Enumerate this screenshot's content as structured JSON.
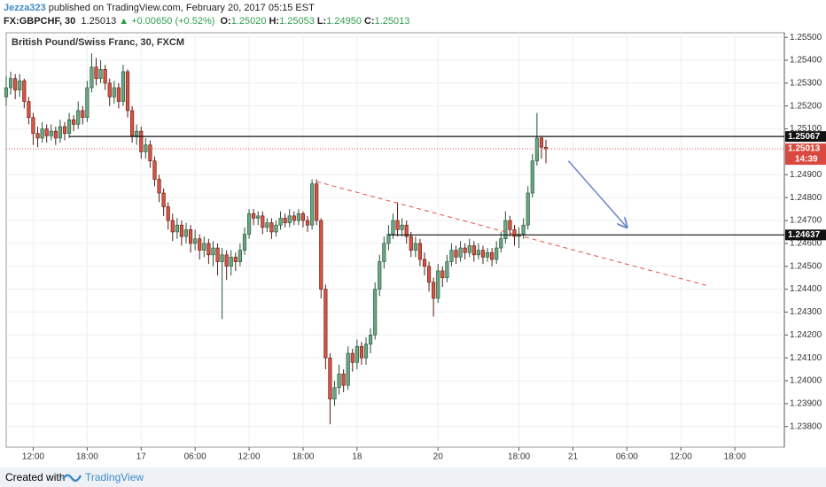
{
  "header": {
    "author": "Jezza323",
    "published": "published on TradingView.com, February 20, 2017 05:15 EST",
    "symbol": "FX:GBPCHF, 30",
    "last": "1.25013",
    "arrow": "▲",
    "change": "+0.00650 (+0.52%)",
    "ohlc": [
      {
        "label": "O:",
        "value": "1.25020"
      },
      {
        "label": "H:",
        "value": "1.25053"
      },
      {
        "label": "L:",
        "value": "1.24950"
      },
      {
        "label": "C:",
        "value": "1.25013"
      }
    ]
  },
  "chart_data": {
    "type": "candlestick",
    "title": "British Pound/Swiss Franc, 30, FXCM",
    "up_color": "#6ba583",
    "down_color": "#d75442",
    "grid": true,
    "xlim": [
      0,
      173
    ],
    "ylim": [
      1.2371,
      1.2552
    ],
    "xticks": [
      {
        "value": 6,
        "label": "12:00"
      },
      {
        "value": 18,
        "label": "18:00"
      },
      {
        "value": 30,
        "label": "17"
      },
      {
        "value": 42,
        "label": "06:00"
      },
      {
        "value": 54,
        "label": "12:00"
      },
      {
        "value": 66,
        "label": "18:00"
      },
      {
        "value": 78,
        "label": "18"
      },
      {
        "value": 96,
        "label": "20"
      },
      {
        "value": 114,
        "label": "18:00"
      },
      {
        "value": 126,
        "label": "21"
      },
      {
        "value": 138,
        "label": "06:00"
      },
      {
        "value": 150,
        "label": "12:00"
      },
      {
        "value": 162,
        "label": "18:00"
      }
    ],
    "yticks": [
      {
        "value": 1.255,
        "label": "1.25500"
      },
      {
        "value": 1.254,
        "label": "1.25400"
      },
      {
        "value": 1.253,
        "label": "1.25300"
      },
      {
        "value": 1.252,
        "label": "1.25200"
      },
      {
        "value": 1.251,
        "label": "1.25100"
      },
      {
        "value": 1.249,
        "label": "1.24900"
      },
      {
        "value": 1.248,
        "label": "1.24800"
      },
      {
        "value": 1.247,
        "label": "1.24700"
      },
      {
        "value": 1.246,
        "label": "1.24600"
      },
      {
        "value": 1.245,
        "label": "1.24500"
      },
      {
        "value": 1.244,
        "label": "1.24400"
      },
      {
        "value": 1.243,
        "label": "1.24300"
      },
      {
        "value": 1.242,
        "label": "1.24200"
      },
      {
        "value": 1.241,
        "label": "1.24100"
      },
      {
        "value": 1.24,
        "label": "1.24000"
      },
      {
        "value": 1.239,
        "label": "1.23900"
      },
      {
        "value": 1.238,
        "label": "1.23800"
      }
    ],
    "open": [
      1.2524,
      1.2528,
      1.2532,
      1.2527,
      1.2531,
      1.2522,
      1.2515,
      1.2508,
      1.2506,
      1.251,
      1.2507,
      1.2509,
      1.2506,
      1.2511,
      1.2508,
      1.2514,
      1.2512,
      1.2518,
      1.2515,
      1.2528,
      1.2537,
      1.2532,
      1.2536,
      1.253,
      1.2524,
      1.2528,
      1.2522,
      1.2535,
      1.2518,
      1.2507,
      1.2509,
      1.25,
      1.2503,
      1.2496,
      1.2488,
      1.2482,
      1.2476,
      1.247,
      1.2465,
      1.2468,
      1.2463,
      1.2466,
      1.246,
      1.2462,
      1.2457,
      1.246,
      1.2455,
      1.2458,
      1.2452,
      1.2455,
      1.245,
      1.2454,
      1.2452,
      1.2457,
      1.2464,
      1.2473,
      1.2471,
      1.2472,
      1.2467,
      1.2469,
      1.2465,
      1.2468,
      1.2471,
      1.2469,
      1.2472,
      1.247,
      1.2473,
      1.247,
      1.2468,
      1.2486,
      1.247,
      1.244,
      1.241,
      1.2392,
      1.2397,
      1.2403,
      1.2398,
      1.2412,
      1.2408,
      1.2415,
      1.241,
      1.2416,
      1.242,
      1.244,
      1.2452,
      1.246,
      1.2464,
      1.247,
      1.2466,
      1.2468,
      1.2463,
      1.2457,
      1.246,
      1.2453,
      1.245,
      1.2443,
      1.2436,
      1.2448,
      1.2445,
      1.2452,
      1.2457,
      1.2454,
      1.2458,
      1.2456,
      1.2459,
      1.2455,
      1.2457,
      1.2454,
      1.2456,
      1.2453,
      1.2458,
      1.2462,
      1.247,
      1.2466,
      1.2463,
      1.2464,
      1.2468,
      1.2482,
      1.2496,
      1.2506,
      1.2502
    ],
    "high": [
      1.2533,
      1.2535,
      1.2534,
      1.2534,
      1.2532,
      1.2524,
      1.2517,
      1.2511,
      1.2513,
      1.2512,
      1.2512,
      1.2511,
      1.2514,
      1.2513,
      1.2517,
      1.2516,
      1.2522,
      1.252,
      1.2531,
      1.2543,
      1.2541,
      1.254,
      1.2538,
      1.2532,
      1.2531,
      1.253,
      1.2538,
      1.2536,
      1.252,
      1.2512,
      1.2511,
      1.2506,
      1.2505,
      1.2498,
      1.249,
      1.2484,
      1.2478,
      1.2473,
      1.2471,
      1.247,
      1.2469,
      1.2468,
      1.2466,
      1.2464,
      1.2463,
      1.2462,
      1.2461,
      1.246,
      1.2458,
      1.2457,
      1.2457,
      1.2456,
      1.246,
      1.2467,
      1.2475,
      1.2475,
      1.2474,
      1.2474,
      1.2471,
      1.2471,
      1.247,
      1.2474,
      1.2473,
      1.2475,
      1.2474,
      1.2475,
      1.2474,
      1.2472,
      1.2488,
      1.2488,
      1.2471,
      1.2442,
      1.2412,
      1.24,
      1.2407,
      1.2405,
      1.2415,
      1.2414,
      1.2418,
      1.2417,
      1.2419,
      1.2423,
      1.2443,
      1.2455,
      1.2463,
      1.2468,
      1.2473,
      1.2478,
      1.2471,
      1.247,
      1.2465,
      1.2463,
      1.2462,
      1.2456,
      1.2452,
      1.2445,
      1.2451,
      1.245,
      1.2455,
      1.246,
      1.2459,
      1.2461,
      1.246,
      1.2462,
      1.2461,
      1.246,
      1.2459,
      1.2458,
      1.2458,
      1.2461,
      1.2465,
      1.2474,
      1.2472,
      1.2468,
      1.2467,
      1.2471,
      1.2485,
      1.2499,
      1.2517,
      1.2507,
      1.25053
    ],
    "low": [
      1.252,
      1.2525,
      1.2523,
      1.2524,
      1.2519,
      1.2512,
      1.2503,
      1.2502,
      1.2504,
      1.2504,
      1.2505,
      1.2503,
      1.2504,
      1.2505,
      1.2506,
      1.2509,
      1.251,
      1.2512,
      1.2513,
      1.2526,
      1.2529,
      1.253,
      1.2527,
      1.252,
      1.2521,
      1.2519,
      1.252,
      1.2515,
      1.2504,
      1.2503,
      1.2497,
      1.2497,
      1.2493,
      1.2485,
      1.2478,
      1.2472,
      1.2466,
      1.2461,
      1.2462,
      1.2459,
      1.246,
      1.2456,
      1.2457,
      1.2453,
      1.2454,
      1.2451,
      1.245,
      1.2446,
      1.2427,
      1.2444,
      1.2446,
      1.2448,
      1.245,
      1.2455,
      1.2462,
      1.2468,
      1.2468,
      1.2464,
      1.2465,
      1.2462,
      1.2463,
      1.2466,
      1.2467,
      1.2467,
      1.2468,
      1.2468,
      1.2467,
      1.2465,
      1.2466,
      1.2468,
      1.2436,
      1.2405,
      1.2381,
      1.2389,
      1.2394,
      1.2395,
      1.2396,
      1.2404,
      1.2405,
      1.2407,
      1.2407,
      1.2412,
      1.2418,
      1.2437,
      1.2449,
      1.2457,
      1.2462,
      1.2463,
      1.2463,
      1.246,
      1.2454,
      1.2454,
      1.245,
      1.2446,
      1.2439,
      1.2428,
      1.2434,
      1.2441,
      1.2443,
      1.245,
      1.2451,
      1.2452,
      1.2453,
      1.2454,
      1.2452,
      1.2453,
      1.2451,
      1.2452,
      1.245,
      1.2451,
      1.2456,
      1.246,
      1.2463,
      1.2459,
      1.2458,
      1.2462,
      1.2466,
      1.248,
      1.2494,
      1.2497,
      1.2495
    ],
    "close": [
      1.2528,
      1.2532,
      1.2527,
      1.2531,
      1.2522,
      1.2515,
      1.2508,
      1.2506,
      1.251,
      1.2507,
      1.2509,
      1.2506,
      1.2511,
      1.2508,
      1.2514,
      1.2512,
      1.2518,
      1.2515,
      1.2528,
      1.2537,
      1.2532,
      1.2536,
      1.253,
      1.2524,
      1.2528,
      1.2522,
      1.2535,
      1.2518,
      1.2507,
      1.2509,
      1.25,
      1.2503,
      1.2496,
      1.2488,
      1.2482,
      1.2476,
      1.247,
      1.2465,
      1.2468,
      1.2463,
      1.2466,
      1.246,
      1.2462,
      1.2457,
      1.246,
      1.2455,
      1.2458,
      1.2452,
      1.2455,
      1.245,
      1.2454,
      1.2452,
      1.2457,
      1.2464,
      1.2473,
      1.2471,
      1.2472,
      1.2467,
      1.2469,
      1.2465,
      1.2468,
      1.2471,
      1.2469,
      1.2472,
      1.247,
      1.2473,
      1.247,
      1.2468,
      1.2486,
      1.247,
      1.244,
      1.241,
      1.2392,
      1.2397,
      1.2403,
      1.2398,
      1.2412,
      1.2408,
      1.2415,
      1.241,
      1.2416,
      1.242,
      1.244,
      1.2452,
      1.246,
      1.2464,
      1.247,
      1.2466,
      1.2468,
      1.2463,
      1.2457,
      1.246,
      1.2453,
      1.245,
      1.2443,
      1.2436,
      1.2448,
      1.2445,
      1.2452,
      1.2457,
      1.2454,
      1.2458,
      1.2456,
      1.2459,
      1.2455,
      1.2457,
      1.2454,
      1.2456,
      1.2453,
      1.2458,
      1.2462,
      1.247,
      1.2466,
      1.2463,
      1.2464,
      1.2468,
      1.2482,
      1.2496,
      1.2506,
      1.2502,
      1.25013
    ],
    "levels": [
      {
        "value": 1.25067,
        "label": "1.25067",
        "start": 14
      },
      {
        "value": 1.24637,
        "label": "1.24637",
        "start": 85
      }
    ],
    "last_price": {
      "value": 1.25013,
      "label": "1.25013"
    },
    "countdown": "14:39",
    "trend_line": {
      "x": [
        69,
        156
      ],
      "y": [
        1.2487,
        1.24415
      ]
    },
    "arrow": {
      "x": [
        125,
        138
      ],
      "y": [
        1.2496,
        1.2467
      ]
    }
  },
  "footer": {
    "created": "Created with",
    "brand": "TradingView"
  }
}
